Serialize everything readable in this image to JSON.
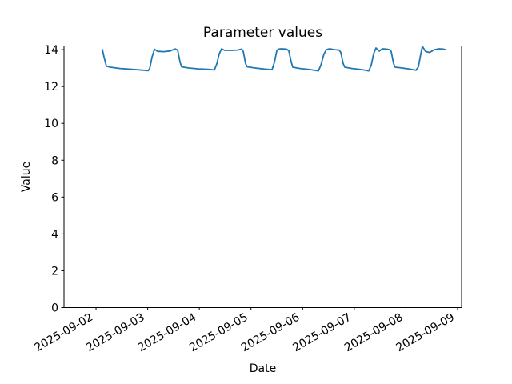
{
  "figure": {
    "background_color": "#ffffff",
    "text_color": "#000000",
    "spine_color": "#000000"
  },
  "chart_data": {
    "type": "line",
    "title": "Parameter values",
    "xlabel": "Date",
    "ylabel": "Value",
    "grid": false,
    "legend": null,
    "line_color": "#1f77b4",
    "line_width": 1.8,
    "ylim": [
      0,
      14.2
    ],
    "y_ticks": [
      0,
      2,
      4,
      6,
      8,
      10,
      12,
      14
    ],
    "x_epoch_label": "2025-09-02",
    "xlim_days": [
      -0.62,
      7.077
    ],
    "x_tick_days": [
      0,
      1,
      2,
      3,
      4,
      5,
      6,
      7
    ],
    "x_tick_labels": [
      "2025-09-02",
      "2025-09-03",
      "2025-09-04",
      "2025-09-05",
      "2025-09-06",
      "2025-09-07",
      "2025-09-08",
      "2025-09-09"
    ],
    "x_tick_rotation_deg": 30,
    "series": [
      {
        "name": "Value",
        "points": [
          [
            0.124,
            14.0
          ],
          [
            0.155,
            13.6
          ],
          [
            0.201,
            13.1
          ],
          [
            0.279,
            13.05
          ],
          [
            0.465,
            12.98
          ],
          [
            0.697,
            12.93
          ],
          [
            0.898,
            12.89
          ],
          [
            1.007,
            12.86
          ],
          [
            1.038,
            12.97
          ],
          [
            1.084,
            13.59
          ],
          [
            1.131,
            14.02
          ],
          [
            1.193,
            13.91
          ],
          [
            1.316,
            13.89
          ],
          [
            1.44,
            13.93
          ],
          [
            1.533,
            14.04
          ],
          [
            1.58,
            13.98
          ],
          [
            1.626,
            13.33
          ],
          [
            1.657,
            13.07
          ],
          [
            1.781,
            13.01
          ],
          [
            1.982,
            12.96
          ],
          [
            2.168,
            12.93
          ],
          [
            2.292,
            12.9
          ],
          [
            2.339,
            13.24
          ],
          [
            2.385,
            13.77
          ],
          [
            2.431,
            14.05
          ],
          [
            2.493,
            13.96
          ],
          [
            2.633,
            13.96
          ],
          [
            2.741,
            13.98
          ],
          [
            2.819,
            14.03
          ],
          [
            2.85,
            13.9
          ],
          [
            2.896,
            13.24
          ],
          [
            2.927,
            13.07
          ],
          [
            3.066,
            13.01
          ],
          [
            3.252,
            12.95
          ],
          [
            3.407,
            12.91
          ],
          [
            3.454,
            13.33
          ],
          [
            3.5,
            13.94
          ],
          [
            3.531,
            14.03
          ],
          [
            3.593,
            14.05
          ],
          [
            3.686,
            14.03
          ],
          [
            3.732,
            13.94
          ],
          [
            3.779,
            13.33
          ],
          [
            3.81,
            13.05
          ],
          [
            3.949,
            12.98
          ],
          [
            4.15,
            12.92
          ],
          [
            4.305,
            12.85
          ],
          [
            4.352,
            13.15
          ],
          [
            4.414,
            13.77
          ],
          [
            4.46,
            14.0
          ],
          [
            4.522,
            14.05
          ],
          [
            4.615,
            14.0
          ],
          [
            4.708,
            13.98
          ],
          [
            4.739,
            13.85
          ],
          [
            4.785,
            13.24
          ],
          [
            4.816,
            13.05
          ],
          [
            4.956,
            12.98
          ],
          [
            5.141,
            12.92
          ],
          [
            5.281,
            12.85
          ],
          [
            5.327,
            13.15
          ],
          [
            5.374,
            13.77
          ],
          [
            5.42,
            14.09
          ],
          [
            5.482,
            13.92
          ],
          [
            5.544,
            14.05
          ],
          [
            5.621,
            14.03
          ],
          [
            5.683,
            14.0
          ],
          [
            5.714,
            13.9
          ],
          [
            5.761,
            13.24
          ],
          [
            5.792,
            13.05
          ],
          [
            5.916,
            13.01
          ],
          [
            6.086,
            12.94
          ],
          [
            6.194,
            12.88
          ],
          [
            6.241,
            13.07
          ],
          [
            6.287,
            13.77
          ],
          [
            6.318,
            14.18
          ],
          [
            6.38,
            13.9
          ],
          [
            6.458,
            13.85
          ],
          [
            6.551,
            14.0
          ],
          [
            6.644,
            14.05
          ],
          [
            6.721,
            14.03
          ],
          [
            6.768,
            14.0
          ]
        ]
      }
    ]
  }
}
